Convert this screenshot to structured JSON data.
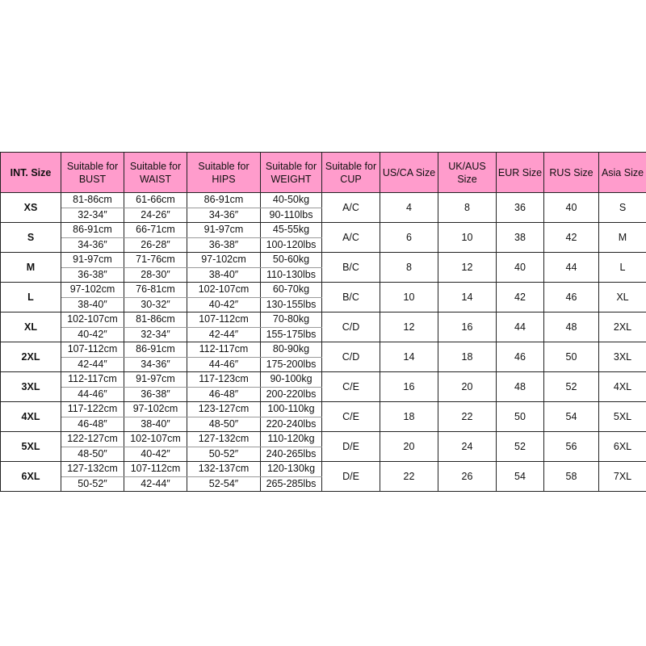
{
  "colors": {
    "header_bg": "#ff9ccc",
    "border": "#222222"
  },
  "headers": [
    "INT. Size",
    "Suitable for BUST",
    "Suitable for WAIST",
    "Suitable for HIPS",
    "Suitable for WEIGHT",
    "Suitable for CUP",
    "US/CA Size",
    "UK/AUS Size",
    "EUR Size",
    "RUS Size",
    "Asia Size"
  ],
  "rows": [
    {
      "size": "XS",
      "bust": [
        "81-86cm",
        "32-34″"
      ],
      "waist": [
        "61-66cm",
        "24-26″"
      ],
      "hips": [
        "86-91cm",
        "34-36″"
      ],
      "weight": [
        "40-50kg",
        "90-110lbs"
      ],
      "cup": "A/C",
      "us": "4",
      "uk": "8",
      "eur": "36",
      "rus": "40",
      "asia": "S"
    },
    {
      "size": "S",
      "bust": [
        "86-91cm",
        "34-36″"
      ],
      "waist": [
        "66-71cm",
        "26-28″"
      ],
      "hips": [
        "91-97cm",
        "36-38″"
      ],
      "weight": [
        "45-55kg",
        "100-120lbs"
      ],
      "cup": "A/C",
      "us": "6",
      "uk": "10",
      "eur": "38",
      "rus": "42",
      "asia": "M"
    },
    {
      "size": "M",
      "bust": [
        "91-97cm",
        "36-38″"
      ],
      "waist": [
        "71-76cm",
        "28-30″"
      ],
      "hips": [
        "97-102cm",
        "38-40″"
      ],
      "weight": [
        "50-60kg",
        "110-130lbs"
      ],
      "cup": "B/C",
      "us": "8",
      "uk": "12",
      "eur": "40",
      "rus": "44",
      "asia": "L"
    },
    {
      "size": "L",
      "bust": [
        "97-102cm",
        "38-40″"
      ],
      "waist": [
        "76-81cm",
        "30-32″"
      ],
      "hips": [
        "102-107cm",
        "40-42″"
      ],
      "weight": [
        "60-70kg",
        "130-155lbs"
      ],
      "cup": "B/C",
      "us": "10",
      "uk": "14",
      "eur": "42",
      "rus": "46",
      "asia": "XL"
    },
    {
      "size": "XL",
      "bust": [
        "102-107cm",
        "40-42″"
      ],
      "waist": [
        "81-86cm",
        "32-34″"
      ],
      "hips": [
        "107-112cm",
        "42-44″"
      ],
      "weight": [
        "70-80kg",
        "155-175lbs"
      ],
      "cup": "C/D",
      "us": "12",
      "uk": "16",
      "eur": "44",
      "rus": "48",
      "asia": "2XL"
    },
    {
      "size": "2XL",
      "bust": [
        "107-112cm",
        "42-44″"
      ],
      "waist": [
        "86-91cm",
        "34-36″"
      ],
      "hips": [
        "112-117cm",
        "44-46″"
      ],
      "weight": [
        "80-90kg",
        "175-200lbs"
      ],
      "cup": "C/D",
      "us": "14",
      "uk": "18",
      "eur": "46",
      "rus": "50",
      "asia": "3XL"
    },
    {
      "size": "3XL",
      "bust": [
        "112-117cm",
        "44-46″"
      ],
      "waist": [
        "91-97cm",
        "36-38″"
      ],
      "hips": [
        "117-123cm",
        "46-48″"
      ],
      "weight": [
        "90-100kg",
        "200-220lbs"
      ],
      "cup": "C/E",
      "us": "16",
      "uk": "20",
      "eur": "48",
      "rus": "52",
      "asia": "4XL"
    },
    {
      "size": "4XL",
      "bust": [
        "117-122cm",
        "46-48″"
      ],
      "waist": [
        "97-102cm",
        "38-40″"
      ],
      "hips": [
        "123-127cm",
        "48-50″"
      ],
      "weight": [
        "100-110kg",
        "220-240lbs"
      ],
      "cup": "C/E",
      "us": "18",
      "uk": "22",
      "eur": "50",
      "rus": "54",
      "asia": "5XL"
    },
    {
      "size": "5XL",
      "bust": [
        "122-127cm",
        "48-50″"
      ],
      "waist": [
        "102-107cm",
        "40-42″"
      ],
      "hips": [
        "127-132cm",
        "50-52″"
      ],
      "weight": [
        "110-120kg",
        "240-265lbs"
      ],
      "cup": "D/E",
      "us": "20",
      "uk": "24",
      "eur": "52",
      "rus": "56",
      "asia": "6XL"
    },
    {
      "size": "6XL",
      "bust": [
        "127-132cm",
        "50-52″"
      ],
      "waist": [
        "107-112cm",
        "42-44″"
      ],
      "hips": [
        "132-137cm",
        "52-54″"
      ],
      "weight": [
        "120-130kg",
        "265-285lbs"
      ],
      "cup": "D/E",
      "us": "22",
      "uk": "26",
      "eur": "54",
      "rus": "58",
      "asia": "7XL"
    }
  ]
}
